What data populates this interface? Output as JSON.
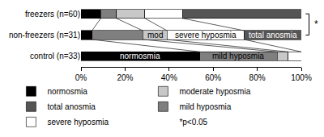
{
  "chart_data": {
    "type": "bar",
    "orientation": "horizontal",
    "stacked": true,
    "categories": [
      "freezers (n=60)",
      "non-freezers (n=31)",
      "control (n=33)"
    ],
    "series": [
      {
        "name": "normosmia",
        "color": "#000000",
        "values": [
          9,
          5,
          54
        ]
      },
      {
        "name": "mild hyposmia",
        "color": "#7f7f7f",
        "values": [
          7,
          23,
          35
        ]
      },
      {
        "name": "moderate hyposmia",
        "color": "#c8c8c8",
        "values": [
          13,
          11,
          5
        ]
      },
      {
        "name": "severe hyposmia",
        "color": "#ffffff",
        "values": [
          17,
          35,
          6
        ]
      },
      {
        "name": "total anosmia",
        "color": "#555555",
        "values": [
          54,
          26,
          0
        ]
      }
    ],
    "xlim": [
      0,
      100
    ],
    "xticks": [
      {
        "value": 0,
        "label": "0%"
      },
      {
        "value": 20,
        "label": "20%"
      },
      {
        "value": 40,
        "label": "40%"
      },
      {
        "value": 60,
        "label": "60%"
      },
      {
        "value": 80,
        "label": "80%"
      },
      {
        "value": 100,
        "label": "100%"
      }
    ],
    "legend": "bottom",
    "annotations": [
      {
        "text": "normosmia",
        "category": "control (n=33)",
        "series": "normosmia"
      },
      {
        "text": "mild hyposmia",
        "category": "control (n=33)",
        "series": "mild hyposmia"
      },
      {
        "text": "mod",
        "category": "non-freezers (n=31)",
        "series": "moderate hyposmia"
      },
      {
        "text": "severe hyposmia",
        "category": "non-freezers (n=31)",
        "series": "severe hyposmia"
      },
      {
        "text": "total anosmia",
        "category": "non-freezers (n=31)",
        "series": "total anosmia"
      }
    ],
    "significance": {
      "categories": [
        "freezers (n=60)",
        "non-freezers (n=31)"
      ],
      "text": "*"
    },
    "note": "*p<0.05"
  }
}
